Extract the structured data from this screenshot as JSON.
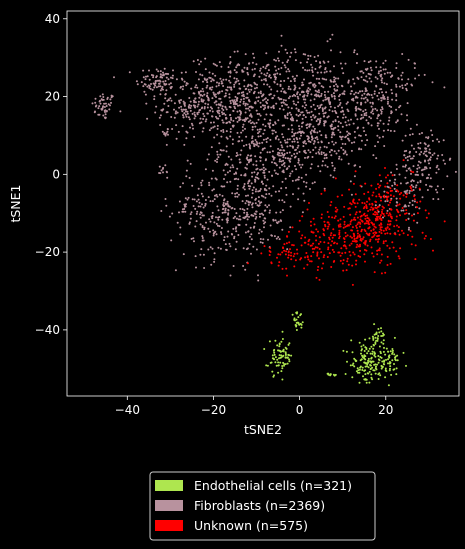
{
  "chart_data": {
    "type": "scatter",
    "title": "",
    "xlabel": "tSNE2",
    "ylabel": "tSNE1",
    "xlim": [
      -54,
      37
    ],
    "ylim": [
      -57,
      42
    ],
    "xticks": [
      -40,
      -20,
      0,
      20
    ],
    "yticks": [
      -40,
      -20,
      0,
      20,
      40
    ],
    "tick_labels_x": [
      "−40",
      "−20",
      "0",
      "20"
    ],
    "tick_labels_y": [
      "−40",
      "−20",
      "0",
      "20",
      "40"
    ],
    "grid": false,
    "legend_position": "bottom-center",
    "background": "#000000",
    "series": [
      {
        "name": "Endothelial cells (n=321)",
        "color": "#aee64f",
        "count": 321,
        "clusters": [
          {
            "cx": -0.5,
            "cy": -38,
            "sx": 0.8,
            "sy": 1.2,
            "n": 25
          },
          {
            "cx": -4.5,
            "cy": -47,
            "sx": 1.4,
            "sy": 2.2,
            "n": 75
          },
          {
            "cx": 15.5,
            "cy": -48.5,
            "sx": 1.8,
            "sy": 2.5,
            "n": 105
          },
          {
            "cx": 20,
            "cy": -48,
            "sx": 1.8,
            "sy": 2.4,
            "n": 80
          },
          {
            "cx": 18,
            "cy": -41.5,
            "sx": 0.8,
            "sy": 1.0,
            "n": 25
          },
          {
            "cx": 7,
            "cy": -51.5,
            "sx": 0.6,
            "sy": 0.2,
            "n": 11
          }
        ]
      },
      {
        "name": "Fibroblasts (n=2369)",
        "color": "#b8929e",
        "count": 2369,
        "clusters": [
          {
            "cx": -45.5,
            "cy": 17.5,
            "sx": 1.4,
            "sy": 1.8,
            "n": 50
          },
          {
            "cx": -33,
            "cy": 24,
            "sx": 2.5,
            "sy": 2.0,
            "n": 80
          },
          {
            "cx": -23,
            "cy": 18,
            "sx": 5.0,
            "sy": 4.5,
            "n": 260
          },
          {
            "cx": -12,
            "cy": 20,
            "sx": 6.0,
            "sy": 5.5,
            "n": 320
          },
          {
            "cx": 2,
            "cy": 20,
            "sx": 6.0,
            "sy": 6.5,
            "n": 300
          },
          {
            "cx": 16,
            "cy": 20,
            "sx": 5.5,
            "sy": 5.5,
            "n": 260
          },
          {
            "cx": -20,
            "cy": -10,
            "sx": 5.0,
            "sy": 6.0,
            "n": 230
          },
          {
            "cx": -8,
            "cy": 5,
            "sx": 6.0,
            "sy": 6.0,
            "n": 280
          },
          {
            "cx": 5,
            "cy": 8,
            "sx": 5.5,
            "sy": 5.0,
            "n": 200
          },
          {
            "cx": -10,
            "cy": -10,
            "sx": 4.0,
            "sy": 5.5,
            "n": 150
          },
          {
            "cx": 29,
            "cy": 4,
            "sx": 2.8,
            "sy": 4.0,
            "n": 120
          },
          {
            "cx": 24,
            "cy": -5,
            "sx": 3.0,
            "sy": 4.0,
            "n": 80
          },
          {
            "cx": -32,
            "cy": 1,
            "sx": 0.6,
            "sy": 0.6,
            "n": 10
          },
          {
            "cx": -31,
            "cy": 10.5,
            "sx": 0.6,
            "sy": 0.4,
            "n": 9
          },
          {
            "cx": 24,
            "cy": 24,
            "sx": 3.0,
            "sy": 3.0,
            "n": 20
          }
        ]
      },
      {
        "name": "Unknown (n=575)",
        "color": "#ff0000",
        "count": 575,
        "clusters": [
          {
            "cx": 17,
            "cy": -13,
            "sx": 5.5,
            "sy": 5.0,
            "n": 330
          },
          {
            "cx": 8,
            "cy": -16,
            "sx": 5.0,
            "sy": 4.0,
            "n": 150
          },
          {
            "cx": -2,
            "cy": -21,
            "sx": 4.0,
            "sy": 1.8,
            "n": 60
          },
          {
            "cx": 22,
            "cy": -5,
            "sx": 3.0,
            "sy": 3.5,
            "n": 35
          }
        ]
      }
    ]
  }
}
